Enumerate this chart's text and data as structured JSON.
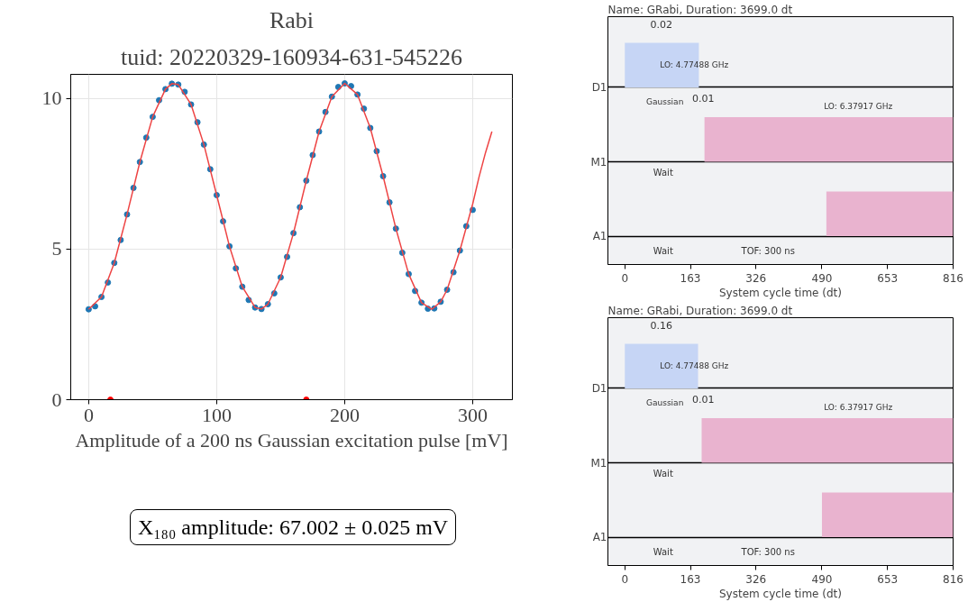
{
  "chart_data": [
    {
      "type": "scatter",
      "title": "Rabi",
      "subtitle": "tuid: 20220329-160934-631-545226",
      "xlabel": "Amplitude of a 200 ns Gaussian excitation pulse [mV]",
      "annotations": [
        "X₁₈₀ amplitude: 67.002 ± 0.025 mV"
      ],
      "xlim": [
        -14,
        331
      ],
      "ylim": [
        0,
        10.8
      ],
      "xticks": [
        0,
        100,
        200,
        300
      ],
      "yticks": [
        0,
        5,
        10
      ],
      "grid": true,
      "x": [
        0,
        5,
        10,
        15,
        20,
        25,
        30,
        35,
        40,
        45,
        50,
        55,
        60,
        65,
        70,
        75,
        80,
        85,
        90,
        95,
        100,
        105,
        110,
        115,
        120,
        125,
        130,
        135,
        140,
        145,
        150,
        155,
        160,
        165,
        170,
        175,
        180,
        185,
        190,
        195,
        200,
        205,
        210,
        215,
        220,
        225,
        230,
        235,
        240,
        245,
        250,
        255,
        260,
        265,
        270,
        275,
        280,
        285,
        290,
        295,
        300
      ],
      "series": [
        {
          "marker": "circle",
          "color": "#1f77b4",
          "values": [
            3.0,
            3.1,
            3.41,
            3.89,
            4.54,
            5.3,
            6.15,
            7.03,
            7.89,
            8.7,
            9.39,
            9.94,
            10.31,
            10.49,
            10.46,
            10.22,
            9.8,
            9.21,
            8.47,
            7.65,
            6.79,
            5.92,
            5.09,
            4.36,
            3.75,
            3.31,
            3.06,
            3.01,
            3.17,
            3.53,
            4.06,
            4.74,
            5.53,
            6.39,
            7.27,
            8.12,
            8.9,
            9.55,
            10.06,
            10.38,
            10.5,
            10.41,
            10.13,
            9.66,
            9.02,
            8.25,
            7.42,
            6.55,
            5.68,
            4.88,
            4.17,
            3.61,
            3.22,
            3.02,
            3.03,
            3.25,
            3.65,
            4.23,
            4.95,
            5.76,
            6.3
          ]
        },
        {
          "type": "line",
          "marker": "none",
          "color": "#ee4444",
          "x": [
            0,
            10,
            20,
            30,
            40,
            50,
            60,
            65,
            70,
            80,
            90,
            100,
            110,
            120,
            130,
            135,
            140,
            150,
            160,
            170,
            180,
            190,
            200,
            210,
            220,
            230,
            240,
            250,
            260,
            268,
            275,
            280,
            290,
            300,
            305,
            310,
            315
          ],
          "values": [
            3.0,
            3.41,
            4.54,
            6.15,
            7.89,
            9.39,
            10.31,
            10.49,
            10.46,
            9.8,
            8.47,
            6.79,
            5.09,
            3.75,
            3.06,
            3.01,
            3.17,
            4.06,
            5.53,
            7.27,
            8.9,
            10.06,
            10.5,
            10.13,
            9.02,
            7.42,
            5.68,
            4.17,
            3.22,
            3.0,
            3.25,
            3.65,
            4.95,
            6.5,
            7.4,
            8.2,
            8.9
          ]
        },
        {
          "marker": "circle",
          "color": "#ff0000",
          "x": [
            17,
            170
          ],
          "values": [
            0,
            0
          ]
        }
      ]
    },
    {
      "type": "bar",
      "orientation": "horizontal",
      "title": "Name: GRabi, Duration: 3699.0 dt",
      "xlabel": "System cycle time (dt)",
      "categories": [
        "D1",
        "M1",
        "A1"
      ],
      "base": [
        0,
        198,
        501
      ],
      "values": [
        184,
        618,
        315
      ],
      "colors": [
        "#c6d5f5",
        "#e9b3cf",
        "#e9b3cf"
      ],
      "xlim": [
        -42,
        816
      ],
      "xticks": [
        0,
        163,
        326,
        490,
        653,
        816
      ],
      "grid": "y",
      "annotations": [
        "0.02",
        "0.01",
        "LO: 4.77488 GHz",
        "Gaussian",
        "LO: 6.37917 GHz",
        "Wait",
        "Wait",
        "TOF: 300 ns"
      ]
    },
    {
      "type": "bar",
      "orientation": "horizontal",
      "title": "Name: GRabi, Duration: 3699.0 dt",
      "xlabel": "System cycle time (dt)",
      "categories": [
        "D1",
        "M1",
        "A1"
      ],
      "base": [
        0,
        191,
        490
      ],
      "values": [
        182,
        625,
        326
      ],
      "colors": [
        "#c6d5f5",
        "#e9b3cf",
        "#e9b3cf"
      ],
      "xlim": [
        -42,
        816
      ],
      "xticks": [
        0,
        163,
        326,
        490,
        653,
        816
      ],
      "grid": "y",
      "annotations": [
        "0.16",
        "0.01",
        "LO: 4.77488 GHz",
        "Gaussian",
        "LO: 6.37917 GHz",
        "Wait",
        "Wait",
        "TOF: 300 ns"
      ]
    }
  ]
}
